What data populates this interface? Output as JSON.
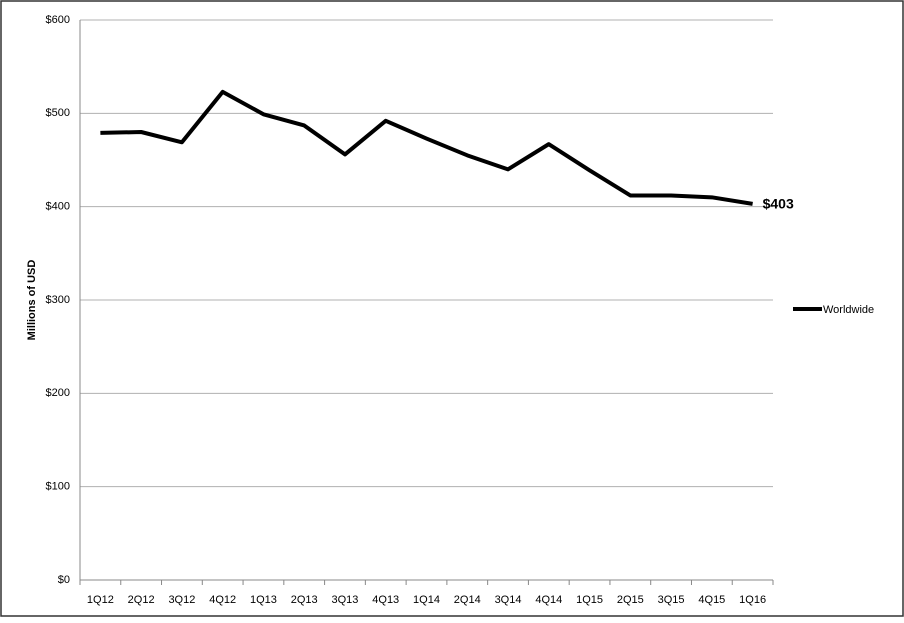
{
  "chart_data": {
    "type": "line",
    "y_label": "Millions of USD",
    "categories": [
      "1Q12",
      "2Q12",
      "3Q12",
      "4Q12",
      "1Q13",
      "2Q13",
      "3Q13",
      "4Q13",
      "1Q14",
      "2Q14",
      "3Q14",
      "4Q14",
      "1Q15",
      "2Q15",
      "3Q15",
      "4Q15",
      "1Q16"
    ],
    "series": [
      {
        "name": "Worldwide",
        "color": "#000000",
        "values": [
          479,
          480,
          469,
          523,
          499,
          487,
          456,
          492,
          473,
          455,
          440,
          467,
          439,
          412,
          412,
          410,
          403
        ],
        "value_labels": [
          null,
          null,
          null,
          null,
          null,
          null,
          null,
          null,
          null,
          null,
          null,
          null,
          null,
          null,
          null,
          null,
          "$403"
        ]
      }
    ],
    "ylim": [
      0,
      600
    ],
    "yticks": [
      {
        "value": 0,
        "label": "$0"
      },
      {
        "value": 100,
        "label": "$100"
      },
      {
        "value": 200,
        "label": "$200"
      },
      {
        "value": 300,
        "label": "$300"
      },
      {
        "value": 400,
        "label": "$400"
      },
      {
        "value": 500,
        "label": "$500"
      },
      {
        "value": 600,
        "label": "$600"
      }
    ],
    "grid": true,
    "legend": "right"
  }
}
